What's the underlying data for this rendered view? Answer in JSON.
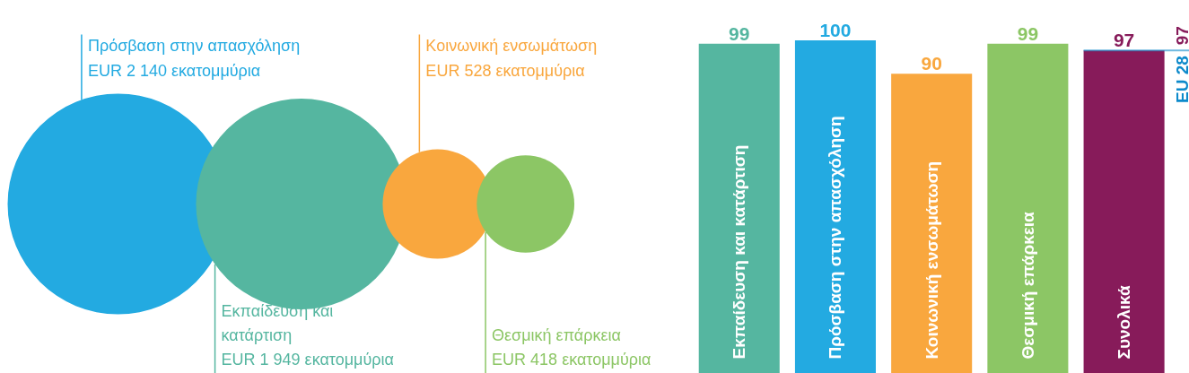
{
  "chart_data": [
    {
      "type": "other",
      "categories": [
        "Πρόσβαση στην απασχόληση",
        "Εκπαίδευση και κατάρτιση",
        "Κοινωνική ενσωμάτωση",
        "Θεσμική επάρκεια"
      ],
      "values": [
        2140,
        1949,
        528,
        418
      ],
      "value_labels": [
        "EUR 2 140 εκατομμύρια",
        "EUR 1 949 εκατομμύρια",
        "EUR 528 εκατομμύρια",
        "EUR 418 εκατομμύρια"
      ],
      "colors": [
        "#23aae1",
        "#55b6a0",
        "#f9a73e",
        "#8cc665"
      ]
    },
    {
      "type": "bar",
      "categories": [
        "Εκπαίδευση και κατάρτιση",
        "Πρόσβαση στην απασχόληση",
        "Κοινωνική ενσωμάτωση",
        "Θεσμική επάρκεια",
        "Συνολικά"
      ],
      "values": [
        99,
        100,
        90,
        99,
        97
      ],
      "colors": [
        "#55b6a0",
        "#23aae1",
        "#f9a73e",
        "#8cc665",
        "#871b5a"
      ],
      "data_labels": true,
      "tick_labels": false,
      "grid": false,
      "ref_lines": [
        {
          "axis": "y",
          "value": 97,
          "label": "EU 28",
          "color": "#0d8acb"
        }
      ],
      "annotations": [
        {
          "text": "97",
          "y": 97
        }
      ]
    }
  ]
}
